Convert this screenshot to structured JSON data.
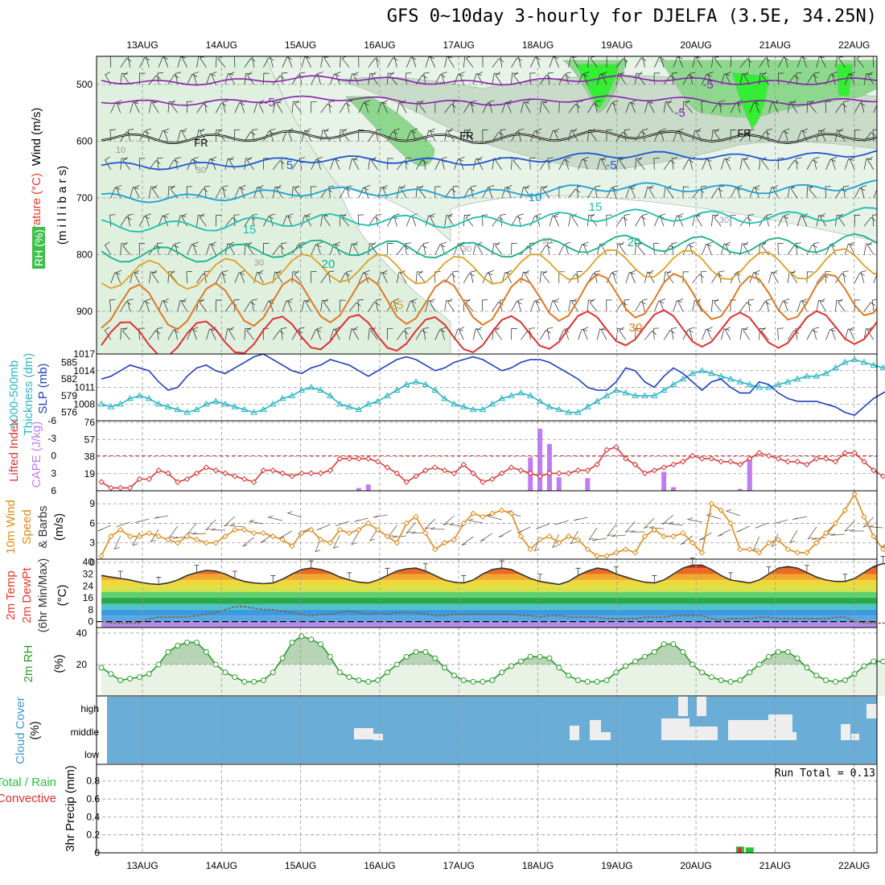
{
  "title": "GFS 0~10day 3-hourly for DJELFA (3.5E, 34.25N)",
  "dates": [
    "13AUG",
    "14AUG",
    "15AUG",
    "16AUG",
    "17AUG",
    "18AUG",
    "19AUG",
    "20AUG",
    "21AUG",
    "22AUG"
  ],
  "colors": {
    "wind": "#000000",
    "temperature": "#e6392a",
    "temperature_cold": "#8a1fb0",
    "rh": "#27c43a",
    "slp": "#1f3fbf",
    "thickness": "#2bb5c4",
    "cape": "#c07cf0",
    "lifted_index": "#d93a3a",
    "wind10": "#e08a1a",
    "rh2m": "#2a9d2a",
    "cloud_bg": "#6aadd6",
    "cloud_fill": "#eeeeee",
    "precip_total": "#27c43a",
    "precip_conv": "#e03030"
  },
  "panels": {
    "profile": {
      "ylabel_wind": "Wind (m/s)",
      "ylabel_temp": "Temperature (°C)",
      "ylabel_rh": "RH (%)",
      "ylabel_levels": "(m i l l i b a r s)",
      "y_ticks": [
        "500",
        "600",
        "700",
        "800",
        "900"
      ],
      "labels": [
        "-5",
        "-5",
        "-5",
        "FR",
        "FR",
        "FR",
        "5",
        "-5",
        "10",
        "15",
        "15",
        "20",
        "20",
        "25",
        "30",
        "10",
        "30",
        "30",
        "30",
        "30",
        "30"
      ]
    },
    "slp": {
      "ylabel": "SLP (mb)",
      "ylabel2": "1000-500mb",
      "ylabel3": "Thickness (dm)",
      "left_ticks": [
        "585",
        "582",
        "579",
        "576"
      ],
      "right_ticks": [
        "1017",
        "1014",
        "1011",
        "1008"
      ]
    },
    "cape": {
      "ylabel": "CAPE (J/kg)",
      "ylabel2": "Lifted Index",
      "left_ticks": [
        "-6",
        "-3",
        "0",
        "3",
        "6"
      ],
      "right_ticks": [
        "76",
        "57",
        "38",
        "19"
      ]
    },
    "wind10": {
      "ylabel": "10m Wind",
      "ylabel2": "Speed",
      "ylabel3": "& Barbs",
      "unit": "(m/s)",
      "ticks": [
        "9",
        "6",
        "3",
        "0"
      ]
    },
    "temp2m": {
      "ylabel": "2m Temp",
      "ylabel2": "2m DewPt",
      "ylabel3": "(6hr Min/Max)",
      "unit": "(°C)",
      "ticks": [
        "40",
        "32",
        "24",
        "16",
        "8",
        "0"
      ]
    },
    "rh2m": {
      "ylabel": "2m RH",
      "unit": "(%)",
      "ticks": [
        "40",
        "20"
      ]
    },
    "cloud": {
      "ylabel": "Cloud Cover",
      "unit": "(%)",
      "ticks": [
        "high",
        "middle",
        "low"
      ]
    },
    "precip": {
      "ylabel": "3hr Precip (mm)",
      "legend_total": "Total / Rain",
      "legend_conv": "Convective",
      "run_total": "Run Total = 0.13",
      "ticks": [
        "0.8",
        "0.6",
        "0.4",
        "0.2",
        "0"
      ]
    }
  },
  "chart_data": [
    {
      "type": "line",
      "title": "Sea Level Pressure",
      "ylabel": "SLP (mb)",
      "ylim": [
        1005,
        1017
      ],
      "series": [
        {
          "name": "SLP (mb)",
          "values": [
            1012.5,
            1013,
            1014,
            1015,
            1014.5,
            1014,
            1012,
            1010.5,
            1011,
            1013,
            1014.5,
            1015,
            1014,
            1013.5,
            1014.5,
            1015.5,
            1016.5,
            1017,
            1016,
            1015,
            1014,
            1013.5,
            1014.5,
            1015,
            1016,
            1015.5,
            1015,
            1014,
            1013,
            1014,
            1015,
            1016,
            1016.5,
            1016,
            1015,
            1014,
            1014.5,
            1015.5,
            1016,
            1016.5,
            1016,
            1015,
            1014,
            1014.5,
            1015.5,
            1016,
            1016,
            1015.5,
            1014.5,
            1013.5,
            1012.5,
            1011,
            1010.5,
            1010.5,
            1012,
            1014.5,
            1014,
            1012,
            1011,
            1013,
            1014.5,
            1013.5,
            1012,
            1010.5,
            1012,
            1012.5,
            1011,
            1010,
            1010,
            1012,
            1011.5,
            1010,
            1009,
            1008.5,
            1008.5,
            1008.5,
            1008,
            1007.5,
            1006.5,
            1006,
            1007.5,
            1009,
            1010,
            1011,
            1012
          ]
        }
      ]
    },
    {
      "type": "line",
      "title": "1000-500mb Thickness",
      "ylabel": "Thickness (dm)",
      "ylim": [
        574.5,
        586.5
      ],
      "series": [
        {
          "name": "Thickness (dm)",
          "values": [
            577.5,
            577,
            577.5,
            578.5,
            579,
            578.5,
            577.5,
            577,
            576.5,
            576,
            576.5,
            577.5,
            578,
            577.5,
            577,
            576.5,
            576,
            576.5,
            577.5,
            578.5,
            579,
            580,
            580.5,
            580,
            579,
            577.5,
            577,
            576.5,
            577.5,
            578,
            579,
            580,
            581,
            581.5,
            581,
            580,
            578.5,
            577.5,
            577,
            576.5,
            576.5,
            577.5,
            578.5,
            579,
            579.5,
            579,
            578,
            577,
            576.5,
            576,
            576,
            577,
            578,
            579,
            580,
            579.5,
            579,
            579,
            579,
            580,
            581,
            582,
            583,
            583.5,
            583,
            582.5,
            582,
            581.5,
            581,
            580.5,
            580.5,
            581,
            581.5,
            582,
            582.5,
            582.5,
            583,
            584,
            585,
            585.5,
            585,
            584.5,
            584,
            583.5,
            583
          ]
        }
      ]
    },
    {
      "type": "bar",
      "title": "CAPE",
      "ylabel": "CAPE (J/kg)",
      "ylim": [
        0,
        76
      ],
      "categories": [
        "16AUG 00Z",
        "16AUG 03Z",
        "18AUG 15Z",
        "18AUG 18Z",
        "18AUG 21Z",
        "19AUG 00Z",
        "19AUG 09Z",
        "20AUG 15Z",
        "20AUG 18Z",
        "21AUG 15Z",
        "21AUG 18Z"
      ],
      "values": [
        3,
        7,
        37,
        69,
        52,
        15,
        14,
        21,
        4,
        2,
        36
      ]
    },
    {
      "type": "line",
      "title": "Lifted Index",
      "ylabel": "Lifted Index",
      "ylim": [
        6,
        -6
      ],
      "series": [
        {
          "name": "Lifted Index",
          "values": [
            4.5,
            5.5,
            5.5,
            5.5,
            4,
            4,
            2.5,
            3,
            4.5,
            4,
            3,
            2,
            2.5,
            3,
            3.5,
            4,
            4.5,
            2.5,
            2.5,
            3,
            3.5,
            3,
            3,
            3,
            2.5,
            0.5,
            0.5,
            0.5,
            0.5,
            1,
            2,
            3,
            4.5,
            3.5,
            2.5,
            2,
            2.5,
            3,
            1.5,
            3,
            4.5,
            4,
            3,
            2,
            2.5,
            3,
            3.5,
            3,
            3,
            3,
            2.5,
            2.5,
            1.5,
            -1,
            -1.5,
            0.5,
            1.5,
            3,
            2.5,
            2,
            1.5,
            1,
            0,
            0.5,
            0.5,
            1,
            1,
            1.5,
            0.5,
            -0.5,
            0,
            0.5,
            1,
            1,
            1.5,
            0.5,
            0.5,
            1,
            -0.5,
            -0.5,
            1,
            2.5,
            3.5,
            4,
            3.5
          ]
        }
      ]
    },
    {
      "type": "line",
      "title": "10m Wind Speed",
      "ylabel": "Speed (m/s)",
      "ylim": [
        0,
        10.5
      ],
      "series": [
        {
          "name": "10m Wind Speed",
          "values": [
            1,
            4,
            5,
            4,
            4,
            4.5,
            4,
            3.5,
            3,
            4,
            3.5,
            3,
            3,
            4,
            5,
            5,
            4.5,
            4.5,
            4,
            3.5,
            2.5,
            4.5,
            5,
            3.5,
            3,
            5,
            4.5,
            5,
            6,
            5,
            4,
            3,
            6,
            7,
            4.5,
            2,
            3,
            3.5,
            6,
            7.5,
            7,
            7.5,
            8,
            7.5,
            4,
            2,
            3.5,
            4,
            3,
            4,
            3.5,
            2,
            1,
            1,
            1.5,
            2,
            1.5,
            4,
            5,
            4,
            4,
            4.5,
            3,
            1.5,
            9,
            8,
            6,
            2,
            2,
            1.5,
            3,
            3.5,
            2,
            1.5,
            1.5,
            3,
            4.5,
            6,
            8,
            10.5,
            7,
            4,
            2,
            1,
            3
          ]
        }
      ]
    },
    {
      "type": "area",
      "title": "2m Temperature",
      "ylabel": "Temperature (°C)",
      "ylim": [
        -4,
        42
      ],
      "series": [
        {
          "name": "2m Temp",
          "values": [
            31,
            30,
            29,
            28,
            26.5,
            25.5,
            25,
            26,
            28,
            31,
            33,
            34.5,
            34,
            32,
            29,
            27,
            26,
            25.5,
            26,
            28.5,
            32,
            35,
            36,
            35,
            33,
            30,
            28,
            26.5,
            26,
            28,
            31,
            34,
            35.5,
            36,
            34,
            31,
            28,
            26.5,
            26,
            28,
            32,
            35,
            36,
            35,
            32,
            29,
            27,
            26,
            25,
            27,
            31,
            34,
            36,
            35,
            32,
            30,
            28,
            26.5,
            26,
            28,
            32,
            36,
            38,
            38,
            35,
            31,
            28,
            27,
            26,
            28,
            32,
            36,
            37,
            36,
            33,
            30,
            28,
            27,
            27,
            29,
            33,
            37,
            39,
            38,
            35
          ]
        }
      ]
    },
    {
      "type": "line",
      "title": "2m Dew Point",
      "ylabel": "Dew Point (°C)",
      "ylim": [
        -4,
        42
      ],
      "series": [
        {
          "name": "2m DewPt",
          "values": [
            0,
            -1,
            -1,
            -1,
            -1,
            2,
            3,
            3,
            3,
            3,
            4,
            5,
            6,
            8,
            10,
            10,
            9,
            8,
            8,
            7,
            6,
            5,
            4,
            5,
            5,
            6,
            7,
            6,
            5,
            6,
            5,
            6,
            6,
            6,
            5,
            4,
            4,
            5,
            5,
            5,
            5,
            5,
            5,
            5,
            4,
            4,
            3,
            4,
            4,
            3,
            3,
            3,
            3,
            2,
            2,
            2,
            2,
            3,
            3,
            3,
            4,
            4,
            4,
            4,
            2,
            1,
            2,
            2,
            2,
            3,
            3,
            2,
            2,
            2,
            2,
            2,
            2,
            3,
            3,
            0,
            -1,
            -1,
            -1,
            -1,
            0
          ]
        }
      ]
    },
    {
      "type": "area",
      "title": "2m Relative Humidity",
      "ylabel": "RH (%)",
      "ylim": [
        0,
        42
      ],
      "series": [
        {
          "name": "2m RH",
          "values": [
            18,
            14,
            10,
            11,
            12,
            14,
            20,
            28,
            32,
            34,
            34,
            28,
            20,
            15,
            12,
            9,
            9,
            10,
            15,
            24,
            34,
            38,
            36,
            33,
            25,
            15,
            12,
            10,
            9,
            10,
            15,
            20,
            25,
            28,
            28,
            24,
            18,
            13,
            10,
            9,
            9,
            10,
            15,
            19,
            22,
            25,
            25,
            24,
            18,
            13,
            10,
            9,
            9,
            10,
            15,
            19,
            22,
            25,
            28,
            33,
            33,
            28,
            20,
            15,
            12,
            10,
            9,
            10,
            15,
            20,
            25,
            28,
            28,
            24,
            18,
            13,
            10,
            9,
            10,
            14,
            19,
            22,
            22,
            20,
            18
          ]
        }
      ]
    },
    {
      "type": "bar",
      "title": "3hr Precipitation",
      "ylabel": "3hr Precip (mm)",
      "ylim": [
        0,
        0.95
      ],
      "categories": [
        "20AUG 15Z",
        "20AUG 18Z"
      ],
      "series": [
        {
          "name": "Total / Rain",
          "values": [
            0.07,
            0.06
          ]
        },
        {
          "name": "Convective",
          "values": [
            0.06,
            0.0
          ]
        }
      ]
    }
  ]
}
